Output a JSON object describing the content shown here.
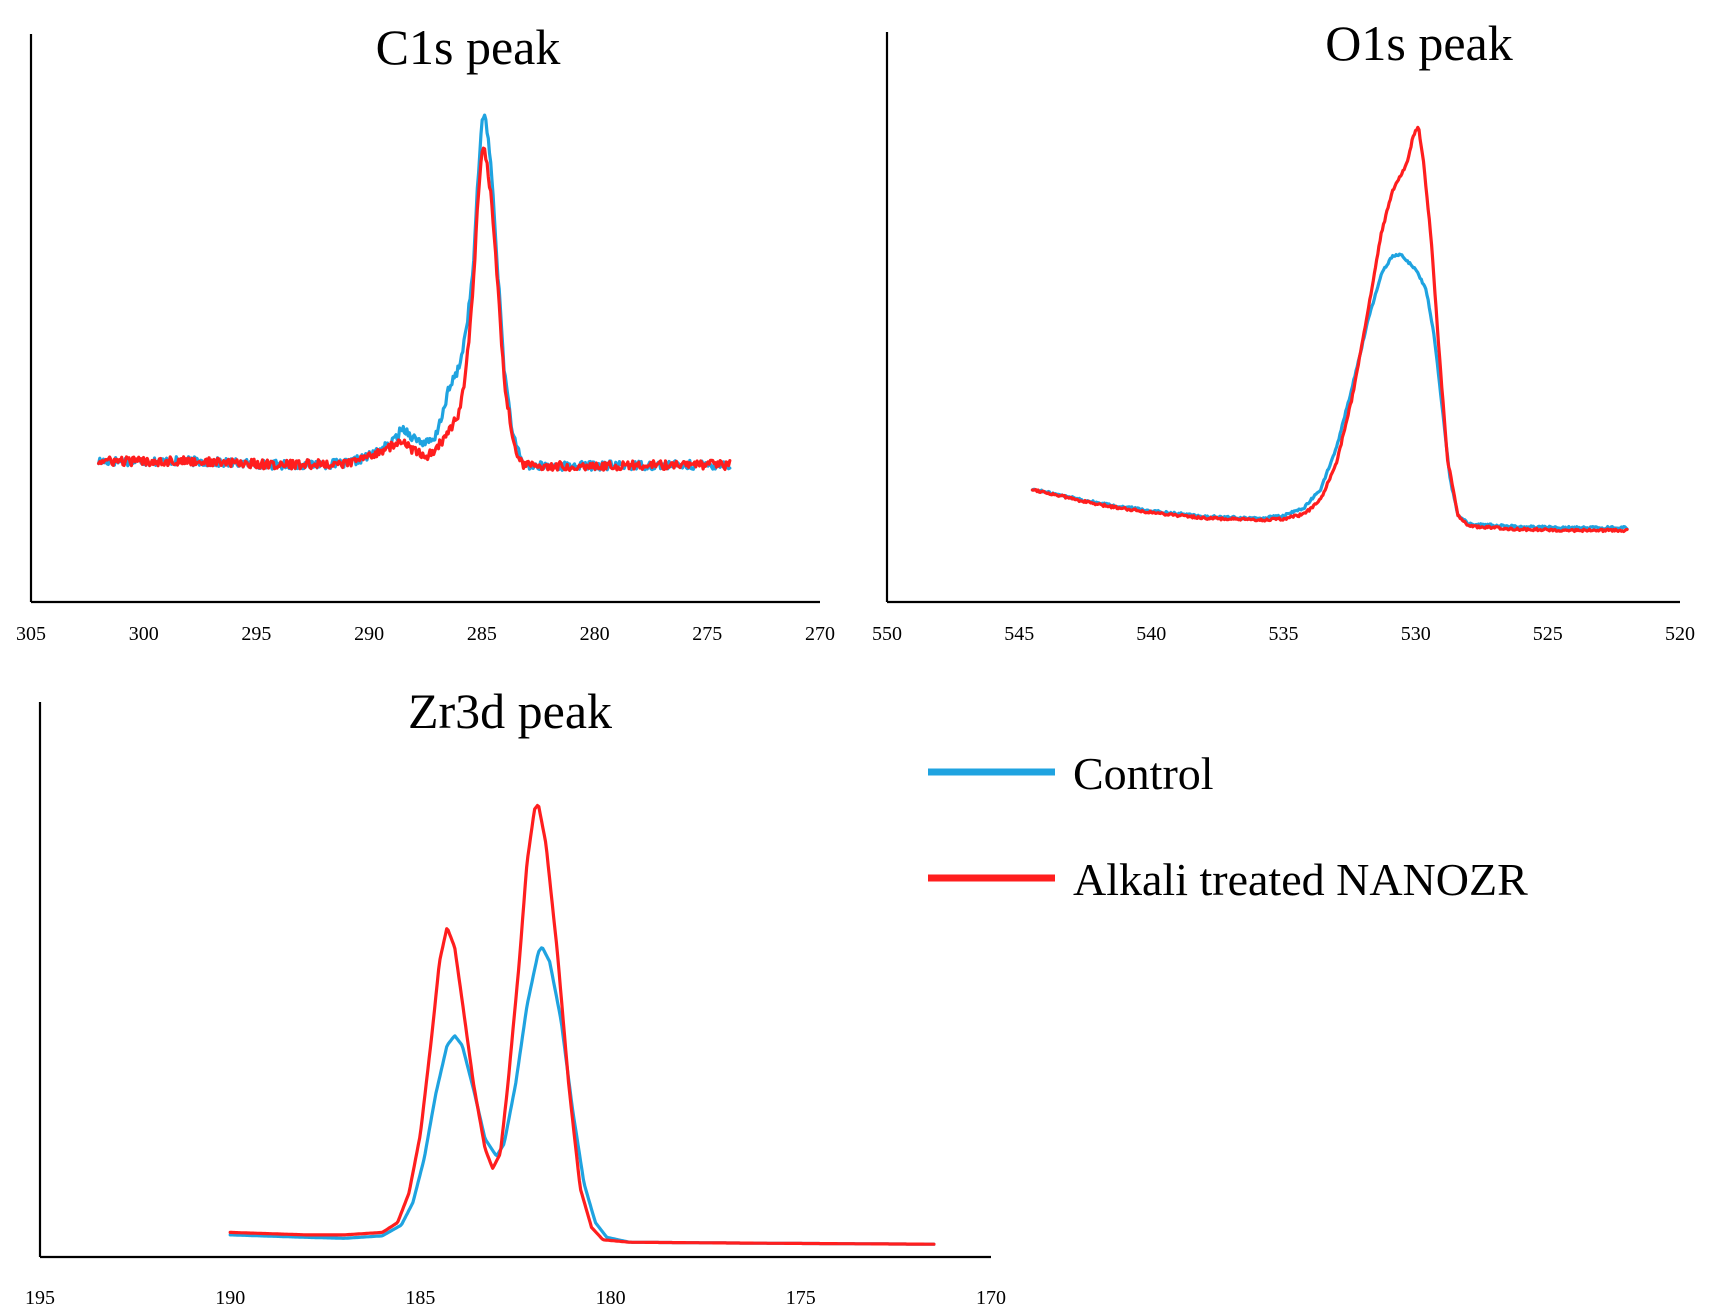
{
  "colors": {
    "control": "#1fa3e0",
    "treated": "#ff1e1e",
    "axis": "#000000"
  },
  "legend": [
    {
      "label": "Control",
      "color": "#1fa3e0"
    },
    {
      "label": "Alkali treated NANOZR",
      "color": "#ff1e1e"
    }
  ],
  "chart_data": [
    {
      "type": "line",
      "title": "C1s peak",
      "xlabel": "",
      "ylabel": "",
      "xlim": [
        305,
        270
      ],
      "ylim": [
        0,
        100
      ],
      "xticks": [
        "305",
        "300",
        "295",
        "290",
        "285",
        "280",
        "275",
        "270"
      ],
      "x_range": [
        302,
        274
      ],
      "noise": 0.9,
      "series": [
        {
          "name": "Control",
          "color": "#1fa3e0",
          "points": [
            [
              302,
              27.5
            ],
            [
              298,
              27.5
            ],
            [
              294,
              26.8
            ],
            [
              291,
              27
            ],
            [
              290,
              28.5
            ],
            [
              289,
              31
            ],
            [
              288.5,
              34
            ],
            [
              288,
              32
            ],
            [
              287.5,
              31
            ],
            [
              287.1,
              31.5
            ],
            [
              286.8,
              36
            ],
            [
              286.5,
              41
            ],
            [
              286,
              46
            ],
            [
              285.7,
              53
            ],
            [
              285.4,
              64
            ],
            [
              285.2,
              80
            ],
            [
              285.0,
              94
            ],
            [
              284.9,
              96
            ],
            [
              284.6,
              86
            ],
            [
              284.3,
              65
            ],
            [
              284.0,
              45
            ],
            [
              283.6,
              32
            ],
            [
              283.2,
              27
            ],
            [
              282.8,
              26.5
            ],
            [
              278,
              26.7
            ],
            [
              274,
              26.8
            ]
          ]
        },
        {
          "name": "Alkali treated NANOZR",
          "color": "#ff1e1e",
          "points": [
            [
              302,
              27.5
            ],
            [
              298,
              27.5
            ],
            [
              294,
              26.8
            ],
            [
              291,
              27
            ],
            [
              290,
              28.5
            ],
            [
              289,
              30.5
            ],
            [
              288.5,
              31.3
            ],
            [
              288,
              29.5
            ],
            [
              287.5,
              28.3
            ],
            [
              287.0,
              30
            ],
            [
              286.5,
              33
            ],
            [
              286.0,
              37
            ],
            [
              285.7,
              45
            ],
            [
              285.4,
              60
            ],
            [
              285.2,
              76
            ],
            [
              285.0,
              88
            ],
            [
              284.9,
              89
            ],
            [
              284.6,
              80
            ],
            [
              284.3,
              62
            ],
            [
              284.0,
              43
            ],
            [
              283.6,
              31
            ],
            [
              283.2,
              27
            ],
            [
              282.8,
              26.5
            ],
            [
              278,
              26.7
            ],
            [
              274,
              26.8
            ]
          ]
        }
      ]
    },
    {
      "type": "line",
      "title": "O1s peak",
      "xlabel": "",
      "ylabel": "",
      "xlim": [
        550,
        520
      ],
      "ylim": [
        0,
        100
      ],
      "xticks": [
        "550",
        "545",
        "540",
        "535",
        "530",
        "525",
        "520"
      ],
      "x_range": [
        544.5,
        522
      ],
      "noise": 0.25,
      "series": [
        {
          "name": "Control",
          "color": "#1fa3e0",
          "points": [
            [
              544.5,
              22
            ],
            [
              542,
              19.3
            ],
            [
              540,
              17.8
            ],
            [
              538,
              16.7
            ],
            [
              536,
              16.3
            ],
            [
              535,
              16.8
            ],
            [
              534.2,
              18.5
            ],
            [
              533.6,
              22
            ],
            [
              533.0,
              30
            ],
            [
              532.4,
              42
            ],
            [
              531.8,
              55
            ],
            [
              531.3,
              64
            ],
            [
              530.9,
              67.5
            ],
            [
              530.6,
              68
            ],
            [
              530.0,
              65
            ],
            [
              529.6,
              61
            ],
            [
              529.3,
              52
            ],
            [
              529.0,
              38
            ],
            [
              528.7,
              24
            ],
            [
              528.4,
              17
            ],
            [
              528.0,
              15.2
            ],
            [
              526,
              14.7
            ],
            [
              524,
              14.5
            ],
            [
              522,
              14.5
            ]
          ]
        },
        {
          "name": "Alkali treated NANOZR",
          "color": "#ff1e1e",
          "points": [
            [
              544.5,
              22
            ],
            [
              542,
              19.0
            ],
            [
              540,
              17.5
            ],
            [
              538,
              16.4
            ],
            [
              536,
              16
            ],
            [
              535,
              16.2
            ],
            [
              534.2,
              17.2
            ],
            [
              533.6,
              20
            ],
            [
              533.0,
              27
            ],
            [
              532.4,
              40
            ],
            [
              531.8,
              57
            ],
            [
              531.3,
              72
            ],
            [
              530.9,
              80
            ],
            [
              530.6,
              83
            ],
            [
              530.3,
              86
            ],
            [
              530.1,
              91
            ],
            [
              529.9,
              93
            ],
            [
              529.7,
              86
            ],
            [
              529.4,
              70
            ],
            [
              529.1,
              48
            ],
            [
              528.8,
              28
            ],
            [
              528.4,
              17
            ],
            [
              528.0,
              14.8
            ],
            [
              526,
              14.2
            ],
            [
              524,
              14.0
            ],
            [
              522,
              14.0
            ]
          ]
        }
      ]
    },
    {
      "type": "line",
      "title": "Zr3d peak",
      "xlabel": "",
      "ylabel": "",
      "xlim": [
        195,
        170
      ],
      "ylim": [
        0,
        100
      ],
      "xticks": [
        "195",
        "190",
        "185",
        "180",
        "175",
        "170"
      ],
      "x_range": [
        190,
        171.5
      ],
      "noise": 0,
      "series": [
        {
          "name": "Control",
          "color": "#1fa3e0",
          "points": [
            [
              190,
              4.5
            ],
            [
              188,
              4
            ],
            [
              187,
              3.8
            ],
            [
              186,
              4.3
            ],
            [
              185.5,
              6.5
            ],
            [
              185.2,
              11
            ],
            [
              184.9,
              20
            ],
            [
              184.6,
              33
            ],
            [
              184.3,
              43
            ],
            [
              184.1,
              45
            ],
            [
              183.9,
              43
            ],
            [
              183.6,
              34
            ],
            [
              183.3,
              24
            ],
            [
              183.0,
              20.5
            ],
            [
              182.8,
              23
            ],
            [
              182.5,
              35
            ],
            [
              182.2,
              51
            ],
            [
              181.9,
              62
            ],
            [
              181.8,
              63
            ],
            [
              181.6,
              60
            ],
            [
              181.3,
              48
            ],
            [
              181.0,
              30
            ],
            [
              180.7,
              15
            ],
            [
              180.4,
              7
            ],
            [
              180.1,
              4
            ],
            [
              179.5,
              3
            ],
            [
              176,
              2.8
            ],
            [
              171.5,
              2.6
            ]
          ]
        },
        {
          "name": "Alkali treated NANOZR",
          "color": "#ff1e1e",
          "points": [
            [
              190,
              5
            ],
            [
              188,
              4.5
            ],
            [
              187,
              4.5
            ],
            [
              186,
              5
            ],
            [
              185.6,
              7
            ],
            [
              185.3,
              13
            ],
            [
              185.0,
              25
            ],
            [
              184.7,
              45
            ],
            [
              184.5,
              60
            ],
            [
              184.3,
              67
            ],
            [
              184.1,
              63
            ],
            [
              183.9,
              52
            ],
            [
              183.6,
              35
            ],
            [
              183.3,
              22
            ],
            [
              183.1,
              18
            ],
            [
              182.9,
              21
            ],
            [
              182.7,
              35
            ],
            [
              182.4,
              60
            ],
            [
              182.2,
              80
            ],
            [
              182.0,
              91
            ],
            [
              181.9,
              92
            ],
            [
              181.7,
              84
            ],
            [
              181.4,
              62
            ],
            [
              181.1,
              35
            ],
            [
              180.8,
              14
            ],
            [
              180.5,
              6
            ],
            [
              180.2,
              3.5
            ],
            [
              179.5,
              3
            ],
            [
              176,
              2.8
            ],
            [
              171.5,
              2.6
            ]
          ]
        }
      ]
    }
  ]
}
